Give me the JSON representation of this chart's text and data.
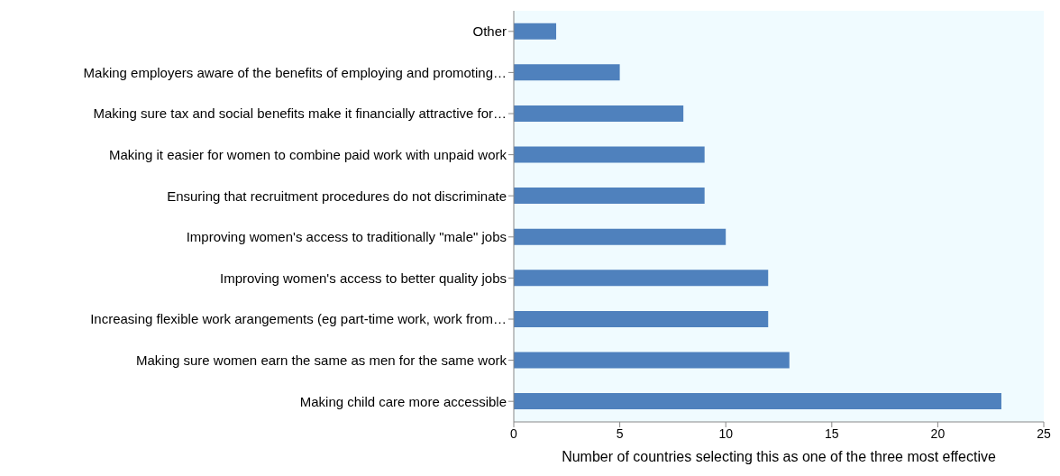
{
  "chart_data": {
    "type": "bar",
    "orientation": "horizontal",
    "xlabel": "Number of countries selecting this as  one of the three most effective",
    "categories": [
      "Other",
      "Making employers aware of the benefits of employing and promoting…",
      "Making sure tax and social benefits make it financially attractive for…",
      "Making it easier for women to combine paid work with unpaid work",
      "Ensuring that recruitment procedures do not discriminate",
      "Improving women's access to traditionally \"male\" jobs",
      "Improving women's access to better quality jobs",
      "Increasing flexible work arangements (eg part-time work, work from…",
      "Making sure women earn the same as men for the same work",
      "Making child care more accessible"
    ],
    "values": [
      2,
      5,
      8,
      9,
      9,
      10,
      12,
      12,
      13,
      23
    ],
    "color": "#4f81bd",
    "xlim": [
      0,
      25
    ],
    "xticks": [
      0,
      5,
      10,
      15,
      20,
      25
    ],
    "grid": false,
    "legend": false
  }
}
